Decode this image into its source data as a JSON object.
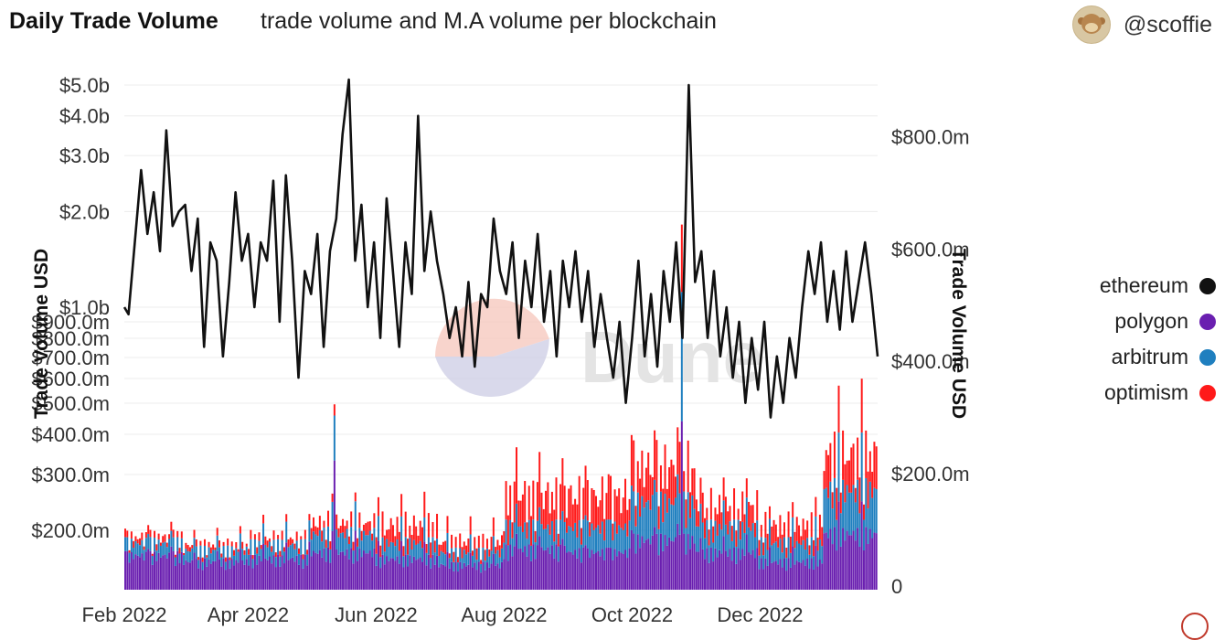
{
  "header": {
    "title": "Daily Trade Volume",
    "subtitle": "trade volume and M.A volume per blockchain",
    "author": "@scoffie",
    "avatar_icon": "monkey-avatar-icon"
  },
  "legend": {
    "items": [
      {
        "label": "ethereum",
        "color": "#111111"
      },
      {
        "label": "polygon",
        "color": "#6a1fb0"
      },
      {
        "label": "arbitrum",
        "color": "#1f7fbf"
      },
      {
        "label": "optimism",
        "color": "#ff1a1a"
      }
    ]
  },
  "watermark": {
    "text": "Dune"
  },
  "chart_data": {
    "type": "bar+line",
    "title": "Daily Trade Volume",
    "subtitle": "trade volume and M.A volume per blockchain",
    "x_start": "2022-02-01",
    "x_end": "2023-01-26",
    "xticks": [
      {
        "label": "Feb 2022",
        "date": "2022-02-01"
      },
      {
        "label": "Apr 2022",
        "date": "2022-04-01"
      },
      {
        "label": "Jun 2022",
        "date": "2022-06-01"
      },
      {
        "label": "Aug 2022",
        "date": "2022-08-01"
      },
      {
        "label": "Oct 2022",
        "date": "2022-10-01"
      },
      {
        "label": "Dec 2022",
        "date": "2022-12-01"
      }
    ],
    "left_axis": {
      "label": "Trade Volume USD",
      "scale": "log",
      "ticks": [
        {
          "label": "$5.0b",
          "value": 5000000000
        },
        {
          "label": "$4.0b",
          "value": 4000000000
        },
        {
          "label": "$3.0b",
          "value": 3000000000
        },
        {
          "label": "$2.0b",
          "value": 2000000000
        },
        {
          "label": "$1.0b",
          "value": 1000000000
        },
        {
          "label": "$900.0m",
          "value": 900000000
        },
        {
          "label": "$800.0m",
          "value": 800000000
        },
        {
          "label": "$700.0m",
          "value": 700000000
        },
        {
          "label": "$600.0m",
          "value": 600000000
        },
        {
          "label": "$500.0m",
          "value": 500000000
        },
        {
          "label": "$400.0m",
          "value": 400000000
        },
        {
          "label": "$300.0m",
          "value": 300000000
        },
        {
          "label": "$200.0m",
          "value": 200000000
        }
      ]
    },
    "right_axis": {
      "label": "Trade Volume USD",
      "scale": "linear",
      "range": [
        0,
        900000000
      ],
      "ticks": [
        {
          "label": "0",
          "value": 0
        },
        {
          "label": "$200.0m",
          "value": 200000000
        },
        {
          "label": "$400.0m",
          "value": 400000000
        },
        {
          "label": "$600.0m",
          "value": 600000000
        },
        {
          "label": "$800.0m",
          "value": 800000000
        }
      ]
    },
    "ethereum_line": {
      "name": "ethereum",
      "axis": "left",
      "unit": "USD billions",
      "points": [
        [
          "2022-02-01",
          1.0
        ],
        [
          "2022-02-03",
          0.95
        ],
        [
          "2022-02-06",
          1.6
        ],
        [
          "2022-02-09",
          2.7
        ],
        [
          "2022-02-12",
          1.7
        ],
        [
          "2022-02-15",
          2.3
        ],
        [
          "2022-02-18",
          1.5
        ],
        [
          "2022-02-21",
          3.6
        ],
        [
          "2022-02-24",
          1.8
        ],
        [
          "2022-02-27",
          2.0
        ],
        [
          "2022-03-02",
          2.1
        ],
        [
          "2022-03-05",
          1.3
        ],
        [
          "2022-03-08",
          1.9
        ],
        [
          "2022-03-11",
          0.75
        ],
        [
          "2022-03-14",
          1.6
        ],
        [
          "2022-03-17",
          1.4
        ],
        [
          "2022-03-20",
          0.7
        ],
        [
          "2022-03-23",
          1.2
        ],
        [
          "2022-03-26",
          2.3
        ],
        [
          "2022-03-29",
          1.4
        ],
        [
          "2022-04-01",
          1.7
        ],
        [
          "2022-04-04",
          1.0
        ],
        [
          "2022-04-07",
          1.6
        ],
        [
          "2022-04-10",
          1.4
        ],
        [
          "2022-04-13",
          2.5
        ],
        [
          "2022-04-16",
          0.9
        ],
        [
          "2022-04-19",
          2.6
        ],
        [
          "2022-04-22",
          1.4
        ],
        [
          "2022-04-25",
          0.6
        ],
        [
          "2022-04-28",
          1.3
        ],
        [
          "2022-05-01",
          1.1
        ],
        [
          "2022-05-04",
          1.7
        ],
        [
          "2022-05-07",
          0.75
        ],
        [
          "2022-05-10",
          1.5
        ],
        [
          "2022-05-13",
          1.9
        ],
        [
          "2022-05-16",
          3.5
        ],
        [
          "2022-05-19",
          5.2
        ],
        [
          "2022-05-22",
          1.4
        ],
        [
          "2022-05-25",
          2.1
        ],
        [
          "2022-05-28",
          1.0
        ],
        [
          "2022-05-31",
          1.6
        ],
        [
          "2022-06-03",
          0.8
        ],
        [
          "2022-06-06",
          2.2
        ],
        [
          "2022-06-09",
          1.3
        ],
        [
          "2022-06-12",
          0.75
        ],
        [
          "2022-06-15",
          1.6
        ],
        [
          "2022-06-18",
          1.1
        ],
        [
          "2022-06-21",
          4.0
        ],
        [
          "2022-06-24",
          1.3
        ],
        [
          "2022-06-27",
          2.0
        ],
        [
          "2022-06-30",
          1.4
        ],
        [
          "2022-07-03",
          1.1
        ],
        [
          "2022-07-06",
          0.8
        ],
        [
          "2022-07-09",
          1.0
        ],
        [
          "2022-07-12",
          0.7
        ],
        [
          "2022-07-15",
          1.2
        ],
        [
          "2022-07-18",
          0.65
        ],
        [
          "2022-07-21",
          1.1
        ],
        [
          "2022-07-24",
          1.0
        ],
        [
          "2022-07-27",
          1.9
        ],
        [
          "2022-07-30",
          1.3
        ],
        [
          "2022-08-02",
          1.1
        ],
        [
          "2022-08-05",
          1.6
        ],
        [
          "2022-08-08",
          0.8
        ],
        [
          "2022-08-11",
          1.4
        ],
        [
          "2022-08-14",
          1.0
        ],
        [
          "2022-08-17",
          1.7
        ],
        [
          "2022-08-20",
          0.9
        ],
        [
          "2022-08-23",
          1.3
        ],
        [
          "2022-08-26",
          0.7
        ],
        [
          "2022-08-29",
          1.4
        ],
        [
          "2022-09-01",
          1.0
        ],
        [
          "2022-09-04",
          1.5
        ],
        [
          "2022-09-07",
          0.9
        ],
        [
          "2022-09-10",
          1.3
        ],
        [
          "2022-09-13",
          0.75
        ],
        [
          "2022-09-16",
          1.1
        ],
        [
          "2022-09-19",
          0.8
        ],
        [
          "2022-09-22",
          0.6
        ],
        [
          "2022-09-25",
          0.9
        ],
        [
          "2022-09-28",
          0.5
        ],
        [
          "2022-10-01",
          0.8
        ],
        [
          "2022-10-04",
          1.4
        ],
        [
          "2022-10-07",
          0.7
        ],
        [
          "2022-10-10",
          1.1
        ],
        [
          "2022-10-13",
          0.65
        ],
        [
          "2022-10-16",
          1.3
        ],
        [
          "2022-10-19",
          0.9
        ],
        [
          "2022-10-22",
          1.6
        ],
        [
          "2022-10-25",
          0.8
        ],
        [
          "2022-10-28",
          5.0
        ],
        [
          "2022-10-31",
          1.2
        ],
        [
          "2022-11-03",
          1.5
        ],
        [
          "2022-11-06",
          0.8
        ],
        [
          "2022-11-09",
          1.3
        ],
        [
          "2022-11-12",
          0.7
        ],
        [
          "2022-11-15",
          1.0
        ],
        [
          "2022-11-18",
          0.6
        ],
        [
          "2022-11-21",
          0.9
        ],
        [
          "2022-11-24",
          0.5
        ],
        [
          "2022-11-27",
          0.8
        ],
        [
          "2022-11-30",
          0.55
        ],
        [
          "2022-12-03",
          0.9
        ],
        [
          "2022-12-06",
          0.45
        ],
        [
          "2022-12-09",
          0.7
        ],
        [
          "2022-12-12",
          0.5
        ],
        [
          "2022-12-15",
          0.8
        ],
        [
          "2022-12-18",
          0.6
        ],
        [
          "2022-12-21",
          1.0
        ],
        [
          "2022-12-24",
          1.5
        ],
        [
          "2022-12-27",
          1.1
        ],
        [
          "2022-12-30",
          1.6
        ],
        [
          "2023-01-02",
          0.9
        ],
        [
          "2023-01-05",
          1.3
        ],
        [
          "2023-01-08",
          0.85
        ],
        [
          "2023-01-11",
          1.5
        ],
        [
          "2023-01-14",
          0.9
        ],
        [
          "2023-01-17",
          1.2
        ],
        [
          "2023-01-20",
          1.6
        ],
        [
          "2023-01-23",
          1.1
        ],
        [
          "2023-01-26",
          0.7
        ]
      ]
    },
    "stacked_bars": {
      "axis": "right",
      "unit": "USD millions",
      "series_order": [
        "polygon",
        "arbitrum",
        "optimism"
      ],
      "monthly_average_daily": [
        {
          "month": "2022-02",
          "polygon": 55,
          "arbitrum": 20,
          "optimism": 8
        },
        {
          "month": "2022-03",
          "polygon": 45,
          "arbitrum": 18,
          "optimism": 7
        },
        {
          "month": "2022-04",
          "polygon": 50,
          "arbitrum": 22,
          "optimism": 9
        },
        {
          "month": "2022-05",
          "polygon": 60,
          "arbitrum": 30,
          "optimism": 15
        },
        {
          "month": "2022-06",
          "polygon": 50,
          "arbitrum": 25,
          "optimism": 25
        },
        {
          "month": "2022-07",
          "polygon": 40,
          "arbitrum": 20,
          "optimism": 15
        },
        {
          "month": "2022-08",
          "polygon": 65,
          "arbitrum": 35,
          "optimism": 45
        },
        {
          "month": "2022-09",
          "polygon": 60,
          "arbitrum": 40,
          "optimism": 45
        },
        {
          "month": "2022-10",
          "polygon": 80,
          "arbitrum": 60,
          "optimism": 50
        },
        {
          "month": "2022-11",
          "polygon": 60,
          "arbitrum": 40,
          "optimism": 30
        },
        {
          "month": "2022-12",
          "polygon": 45,
          "arbitrum": 30,
          "optimism": 25
        },
        {
          "month": "2023-01",
          "polygon": 90,
          "arbitrum": 70,
          "optimism": 50
        }
      ],
      "notable_peaks": [
        {
          "date": "2022-05-12",
          "polygon": 230,
          "arbitrum": 80,
          "optimism": 20
        },
        {
          "date": "2022-10-25",
          "polygon": 300,
          "arbitrum": 230,
          "optimism": 120
        }
      ]
    }
  }
}
